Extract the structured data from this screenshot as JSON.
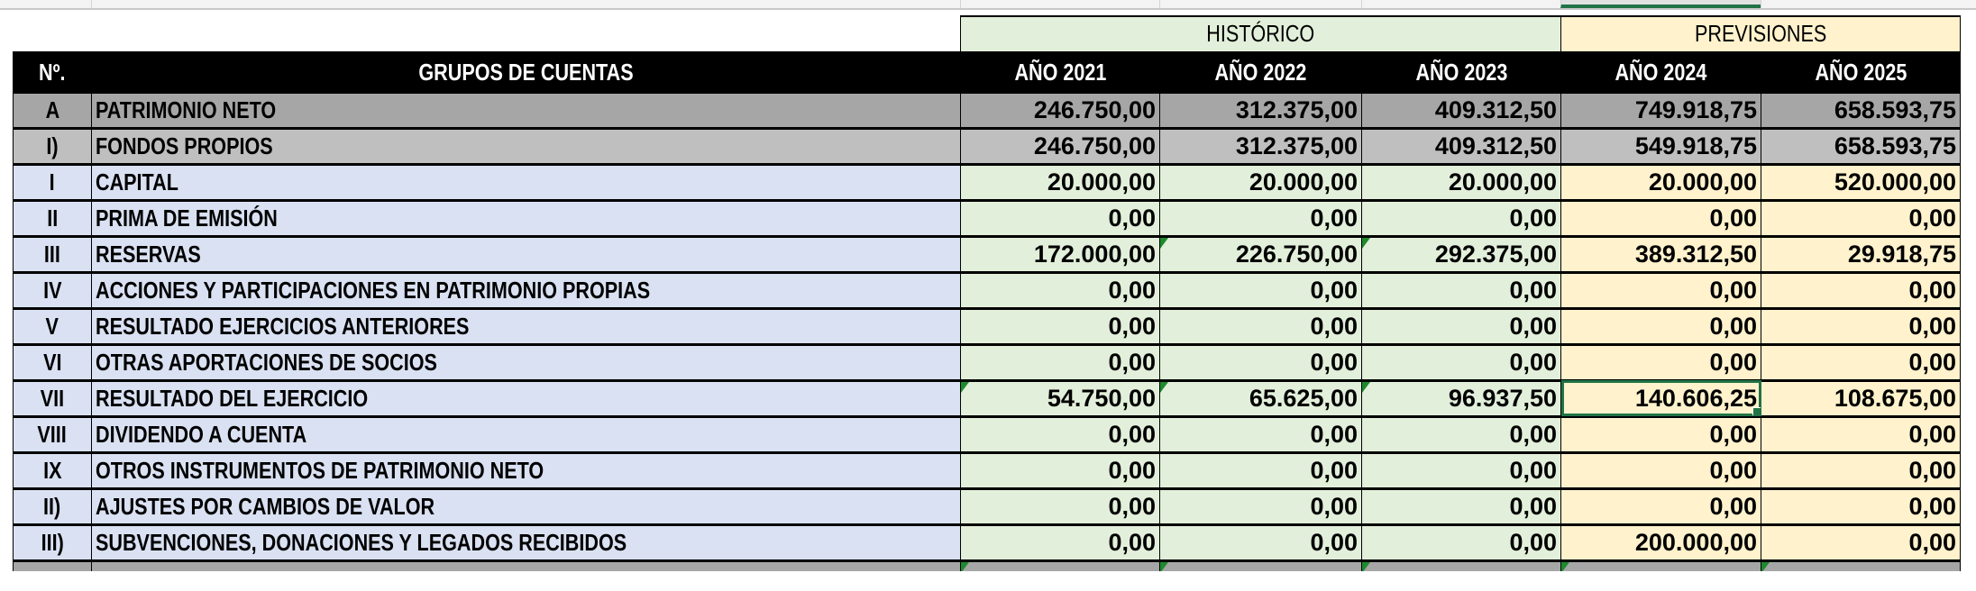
{
  "group_headers": {
    "historico": "HISTÓRICO",
    "previsiones": "PREVISIONES"
  },
  "columns": {
    "num": "Nº.",
    "grupo": "GRUPOS DE CUENTAS",
    "years": [
      "AÑO 2021",
      "AÑO 2022",
      "AÑO 2023",
      "AÑO 2024",
      "AÑO 2025"
    ]
  },
  "selected_cell": {
    "row": "VII",
    "column": "AÑO 2024"
  },
  "colors": {
    "header_bg": "#000000",
    "total_bg": "#a6a6a6",
    "subtotal_bg": "#bfbfbf",
    "label_bg": "#d9e1f2",
    "historico_bg": "#e2efda",
    "previsiones_bg": "#fff2cc",
    "selection": "#217346"
  },
  "rows": [
    {
      "num": "A",
      "label": "PATRIMONIO NETO",
      "style": "a",
      "values": [
        "246.750,00",
        "312.375,00",
        "409.312,50",
        "749.918,75",
        "658.593,75"
      ],
      "flags": []
    },
    {
      "num": "I)",
      "label": "FONDOS PROPIOS",
      "style": "b",
      "values": [
        "246.750,00",
        "312.375,00",
        "409.312,50",
        "549.918,75",
        "658.593,75"
      ],
      "flags": []
    },
    {
      "num": "I",
      "label": "CAPITAL",
      "style": "c",
      "values": [
        "20.000,00",
        "20.000,00",
        "20.000,00",
        "20.000,00",
        "520.000,00"
      ],
      "flags": []
    },
    {
      "num": "II",
      "label": "PRIMA DE EMISIÓN",
      "style": "c",
      "values": [
        "0,00",
        "0,00",
        "0,00",
        "0,00",
        "0,00"
      ],
      "flags": []
    },
    {
      "num": "III",
      "label": "RESERVAS",
      "style": "c",
      "values": [
        "172.000,00",
        "226.750,00",
        "292.375,00",
        "389.312,50",
        "29.918,75"
      ],
      "flags": [
        1,
        2
      ]
    },
    {
      "num": "IV",
      "label": "ACCIONES Y PARTICIPACIONES EN PATRIMONIO PROPIAS",
      "style": "c",
      "values": [
        "0,00",
        "0,00",
        "0,00",
        "0,00",
        "0,00"
      ],
      "flags": []
    },
    {
      "num": "V",
      "label": "RESULTADO EJERCICIOS ANTERIORES",
      "style": "c",
      "values": [
        "0,00",
        "0,00",
        "0,00",
        "0,00",
        "0,00"
      ],
      "flags": []
    },
    {
      "num": "VI",
      "label": "OTRAS APORTACIONES DE SOCIOS",
      "style": "c",
      "values": [
        "0,00",
        "0,00",
        "0,00",
        "0,00",
        "0,00"
      ],
      "flags": []
    },
    {
      "num": "VII",
      "label": "RESULTADO DEL EJERCICIO",
      "style": "c",
      "values": [
        "54.750,00",
        "65.625,00",
        "96.937,50",
        "140.606,25",
        "108.675,00"
      ],
      "flags": [
        0,
        1,
        2
      ]
    },
    {
      "num": "VIII",
      "label": "DIVIDENDO A CUENTA",
      "style": "c",
      "values": [
        "0,00",
        "0,00",
        "0,00",
        "0,00",
        "0,00"
      ],
      "flags": []
    },
    {
      "num": "IX",
      "label": "OTROS INSTRUMENTOS DE PATRIMONIO NETO",
      "style": "c",
      "values": [
        "0,00",
        "0,00",
        "0,00",
        "0,00",
        "0,00"
      ],
      "flags": []
    },
    {
      "num": "II)",
      "label": "AJUSTES POR CAMBIOS DE VALOR",
      "style": "c",
      "values": [
        "0,00",
        "0,00",
        "0,00",
        "0,00",
        "0,00"
      ],
      "flags": []
    },
    {
      "num": "III)",
      "label": "SUBVENCIONES, DONACIONES Y LEGADOS RECIBIDOS",
      "style": "c",
      "values": [
        "0,00",
        "0,00",
        "0,00",
        "200.000,00",
        "0,00"
      ],
      "flags": []
    }
  ]
}
